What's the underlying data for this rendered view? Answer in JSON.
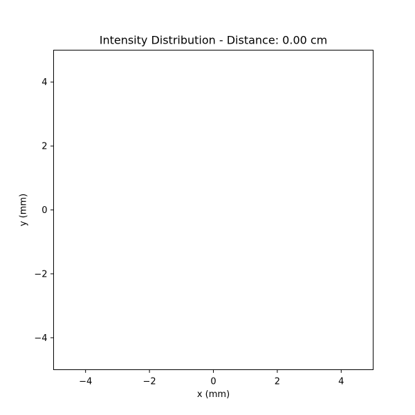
{
  "chart_data": {
    "type": "heatmap",
    "title": "Intensity Distribution - Distance: 0.00 cm",
    "xlabel": "x (mm)",
    "ylabel": "y (mm)",
    "xlim": [
      -5,
      5
    ],
    "ylim": [
      -5,
      5
    ],
    "x_ticks": [
      -4,
      -2,
      0,
      2,
      4
    ],
    "y_ticks": [
      -4,
      -2,
      0,
      2,
      4
    ],
    "x_tick_labels": [
      "−4",
      "−2",
      "0",
      "2",
      "4"
    ],
    "y_tick_labels": [
      "−4",
      "−2",
      "0",
      "2",
      "4"
    ],
    "values": [],
    "grid": false,
    "legend": "none",
    "colors": {
      "background": "#ffffff",
      "axes": "#000000"
    }
  }
}
